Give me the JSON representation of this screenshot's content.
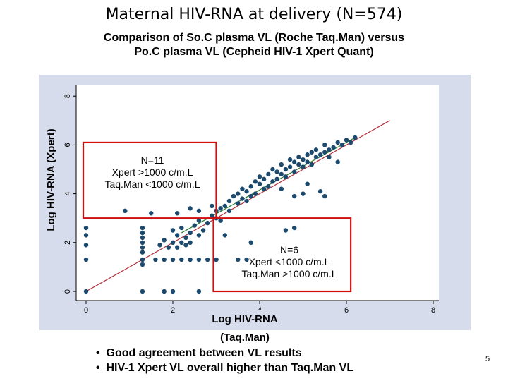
{
  "title": "Maternal HIV-RNA at delivery (N=574)",
  "subtitle_lines": [
    "Comparison of So.C plasma VL (Roche Taq.Man) versus",
    "Po.C plasma VL (Cepheid HIV-1 Xpert Quant)"
  ],
  "annotations": {
    "upper_box": [
      "N=11",
      "Xpert >1000 c/m.L",
      "Taq.Man <1000 c/m.L"
    ],
    "lower_box": [
      "N=6",
      "Xpert <1000 c/m.L",
      "Taq.Man >1000 c/m.L"
    ]
  },
  "bullets": [
    "Good agreement between VL results",
    "HIV-1 Xpert VL overall higher than Taq.Man VL"
  ],
  "bullet_symbol": "•",
  "page_number": "5",
  "colors": {
    "plot_bg": "#d7dcec",
    "points": "#1b4a6e",
    "identity_line": "#b0303c",
    "fit_line": "#2e7a2e",
    "highlight_box": "#d01010"
  },
  "chart_data": {
    "type": "scatter",
    "xlabel": "Log HIV-RNA (Taq.Man)",
    "ylabel": "Log HIV-RNA (Xpert)",
    "xlim": [
      0,
      8
    ],
    "ylim": [
      0,
      8
    ],
    "xticks": [
      0,
      2,
      4,
      6,
      8
    ],
    "yticks": [
      0,
      2,
      4,
      6,
      8
    ],
    "grid": false,
    "threshold_boxes": [
      {
        "x_range": [
          0,
          3
        ],
        "y_range": [
          3,
          6.1
        ]
      },
      {
        "x_range": [
          3,
          6.1
        ],
        "y_range": [
          0,
          3
        ]
      }
    ],
    "reference_lines": [
      {
        "kind": "identity",
        "from": [
          0,
          0
        ],
        "to": [
          7,
          7
        ]
      },
      {
        "kind": "fit",
        "from": [
          2.2,
          2.4
        ],
        "to": [
          6.2,
          6.3
        ]
      }
    ],
    "points": [
      [
        0,
        0
      ],
      [
        0,
        1.9
      ],
      [
        0,
        2.3
      ],
      [
        0,
        2.6
      ],
      [
        0,
        1.3
      ],
      [
        1.3,
        0
      ],
      [
        1.3,
        1.3
      ],
      [
        1.3,
        1.6
      ],
      [
        1.3,
        1.8
      ],
      [
        1.3,
        2.0
      ],
      [
        1.3,
        2.2
      ],
      [
        1.3,
        2.4
      ],
      [
        1.3,
        2.6
      ],
      [
        1.3,
        1.1
      ],
      [
        1.6,
        1.3
      ],
      [
        1.8,
        1.3
      ],
      [
        2.0,
        1.3
      ],
      [
        2.2,
        1.3
      ],
      [
        2.4,
        1.3
      ],
      [
        2.6,
        1.3
      ],
      [
        2.8,
        1.3
      ],
      [
        3.0,
        1.3
      ],
      [
        1.7,
        1.9
      ],
      [
        1.8,
        2.1
      ],
      [
        1.9,
        1.8
      ],
      [
        2.0,
        2.5
      ],
      [
        2.0,
        2.0
      ],
      [
        2.1,
        1.8
      ],
      [
        2.1,
        2.3
      ],
      [
        2.2,
        2.6
      ],
      [
        2.2,
        2.0
      ],
      [
        2.3,
        2.2
      ],
      [
        2.3,
        1.9
      ],
      [
        2.4,
        2.4
      ],
      [
        2.4,
        2.0
      ],
      [
        2.5,
        2.7
      ],
      [
        2.6,
        2.3
      ],
      [
        2.6,
        2.9
      ],
      [
        2.7,
        2.5
      ],
      [
        2.8,
        2.8
      ],
      [
        2.9,
        3.1
      ],
      [
        3.0,
        3.0
      ],
      [
        3.0,
        3.3
      ],
      [
        3.1,
        2.9
      ],
      [
        3.1,
        3.4
      ],
      [
        2.9,
        3.5
      ],
      [
        3.2,
        3.5
      ],
      [
        3.3,
        3.3
      ],
      [
        3.3,
        3.7
      ],
      [
        3.4,
        3.9
      ],
      [
        3.5,
        3.6
      ],
      [
        3.5,
        4.0
      ],
      [
        3.6,
        3.8
      ],
      [
        3.6,
        4.2
      ],
      [
        3.7,
        4.1
      ],
      [
        3.7,
        3.7
      ],
      [
        3.8,
        4.3
      ],
      [
        3.8,
        3.9
      ],
      [
        3.9,
        4.5
      ],
      [
        3.9,
        4.0
      ],
      [
        4.0,
        4.4
      ],
      [
        4.0,
        4.7
      ],
      [
        4.1,
        4.2
      ],
      [
        4.1,
        4.6
      ],
      [
        4.2,
        4.3
      ],
      [
        4.2,
        4.8
      ],
      [
        4.3,
        4.5
      ],
      [
        4.3,
        5.0
      ],
      [
        4.4,
        4.6
      ],
      [
        4.4,
        4.9
      ],
      [
        4.5,
        4.8
      ],
      [
        4.5,
        5.2
      ],
      [
        4.6,
        4.7
      ],
      [
        4.6,
        5.0
      ],
      [
        4.7,
        5.1
      ],
      [
        4.7,
        5.4
      ],
      [
        4.8,
        4.9
      ],
      [
        4.8,
        5.3
      ],
      [
        4.9,
        5.2
      ],
      [
        4.9,
        5.5
      ],
      [
        5.0,
        5.1
      ],
      [
        5.0,
        5.4
      ],
      [
        5.1,
        5.3
      ],
      [
        5.1,
        5.6
      ],
      [
        5.2,
        5.2
      ],
      [
        5.2,
        5.7
      ],
      [
        5.3,
        5.5
      ],
      [
        5.3,
        5.8
      ],
      [
        5.4,
        5.6
      ],
      [
        5.5,
        5.7
      ],
      [
        5.5,
        6.0
      ],
      [
        5.6,
        5.8
      ],
      [
        5.6,
        5.5
      ],
      [
        5.7,
        5.9
      ],
      [
        5.8,
        6.1
      ],
      [
        5.9,
        6.0
      ],
      [
        6.0,
        6.2
      ],
      [
        6.1,
        6.1
      ],
      [
        5.8,
        5.3
      ],
      [
        6.2,
        6.3
      ],
      [
        0.9,
        3.3
      ],
      [
        1.5,
        3.2
      ],
      [
        2.1,
        3.2
      ],
      [
        2.6,
        3.3
      ],
      [
        2.4,
        3.4
      ],
      [
        3.2,
        2.3
      ],
      [
        3.5,
        1.3
      ],
      [
        3.7,
        1.3
      ],
      [
        3.8,
        2.0
      ],
      [
        4.8,
        2.6
      ],
      [
        4.6,
        2.5
      ],
      [
        5.1,
        4.4
      ],
      [
        5.4,
        4.1
      ],
      [
        5.0,
        4.0
      ],
      [
        4.5,
        4.2
      ],
      [
        4.8,
        3.9
      ],
      [
        5.5,
        3.9
      ],
      [
        2.6,
        0
      ],
      [
        1.8,
        0
      ],
      [
        3.0,
        1.3
      ],
      [
        2.0,
        0
      ]
    ]
  }
}
